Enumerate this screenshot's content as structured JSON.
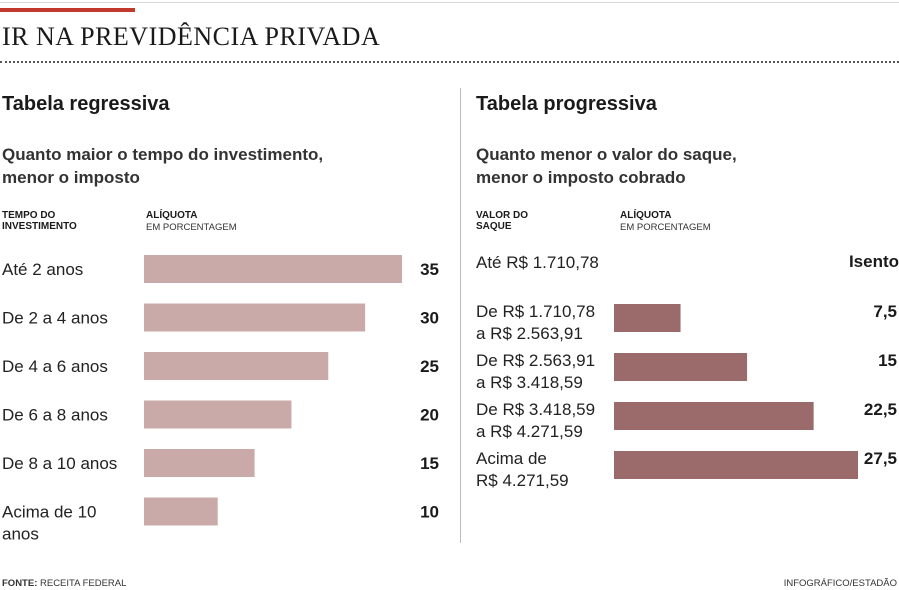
{
  "header": {
    "title": "IR NA PREVIDÊNCIA PRIVADA"
  },
  "left": {
    "title": "Tabela regressiva",
    "subtitle_line1": "Quanto maior o tempo do investimento,",
    "subtitle_line2": "menor o imposto",
    "col1_line1": "TEMPO DO",
    "col1_line2": "INVESTIMENTO",
    "col2_line1": "ALÍQUOTA",
    "col2_line2": "EM PORCENTAGEM",
    "color": "#caa9a9"
  },
  "right": {
    "title": "Tabela progressiva",
    "subtitle_line1": "Quanto menor o valor do saque,",
    "subtitle_line2": "menor o imposto cobrado",
    "col1_line1": "VALOR DO",
    "col1_line2": "SAQUE",
    "col2_line1": "ALÍQUOTA",
    "col2_line2": "EM PORCENTAGEM",
    "exempt_label": "Até R$ 1.710,78",
    "exempt_value": "Isento",
    "color": "#9b6b6b"
  },
  "footer": {
    "source_label": "FONTE:",
    "source": "RECEITA FEDERAL",
    "credit": "INFOGRÁFICO/ESTADÃO"
  },
  "chart_data": [
    {
      "type": "bar",
      "title": "Tabela regressiva",
      "categories": [
        [
          "Até 2 anos"
        ],
        [
          "De 2 a 4 anos"
        ],
        [
          "De 4 a 6 anos"
        ],
        [
          "De 6 a 8 anos"
        ],
        [
          "De 8 a 10 anos"
        ],
        [
          "Acima de 10",
          "anos"
        ]
      ],
      "values": [
        35,
        30,
        25,
        20,
        15,
        10
      ],
      "value_labels": [
        "35",
        "30",
        "25",
        "20",
        "15",
        "10"
      ],
      "xlabel": "",
      "ylabel": "",
      "xlim": [
        0,
        35
      ]
    },
    {
      "type": "bar",
      "title": "Tabela progressiva",
      "categories": [
        [
          "De R$ 1.710,78",
          "a R$ 2.563,91"
        ],
        [
          "De R$ 2.563,91",
          "a R$ 3.418,59"
        ],
        [
          "De R$ 3.418,59",
          "a R$ 4.271,59"
        ],
        [
          "Acima de",
          "R$ 4.271,59"
        ]
      ],
      "values": [
        7.5,
        15,
        22.5,
        27.5
      ],
      "value_labels": [
        "7,5",
        "15",
        "22,5",
        "27,5"
      ],
      "xlabel": "",
      "ylabel": "",
      "xlim": [
        0,
        27.5
      ]
    }
  ]
}
